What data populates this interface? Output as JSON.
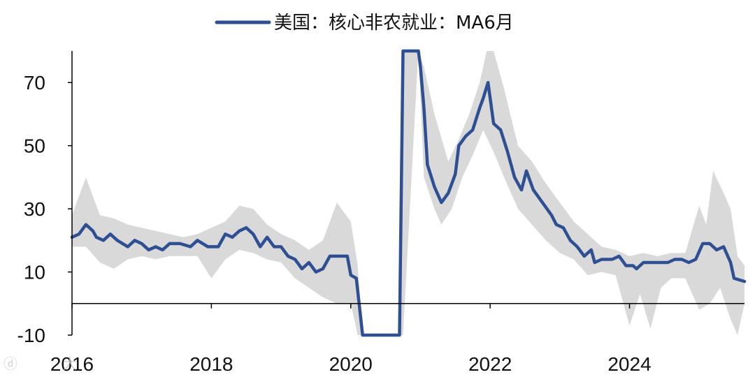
{
  "chart_data": {
    "type": "line",
    "title": "",
    "xlabel": "",
    "ylabel": "",
    "xlim": [
      2016.0,
      2025.65
    ],
    "ylim": [
      -10,
      80
    ],
    "x_ticks": [
      2016,
      2018,
      2020,
      2022,
      2024
    ],
    "x_tick_labels": [
      "2016",
      "2018",
      "2020",
      "2022",
      "2024"
    ],
    "y_ticks": [
      70,
      50,
      30,
      10,
      -10
    ],
    "y_tick_labels": [
      "70",
      "50",
      "30",
      "10",
      "-10"
    ],
    "grid": false,
    "legend_position": "top-center",
    "colors": {
      "line": "#2f4f93",
      "band": "#d9d9d9",
      "axis": "#000000"
    },
    "series": [
      {
        "name": "美国：核心非农就业：MA6月",
        "points": [
          [
            2016.0,
            21
          ],
          [
            2016.1,
            22
          ],
          [
            2016.2,
            25
          ],
          [
            2016.3,
            23
          ],
          [
            2016.35,
            21
          ],
          [
            2016.45,
            20
          ],
          [
            2016.55,
            22
          ],
          [
            2016.65,
            20
          ],
          [
            2016.8,
            18
          ],
          [
            2016.9,
            20
          ],
          [
            2017.0,
            19
          ],
          [
            2017.1,
            17
          ],
          [
            2017.2,
            18
          ],
          [
            2017.3,
            17
          ],
          [
            2017.4,
            19
          ],
          [
            2017.55,
            19
          ],
          [
            2017.7,
            18
          ],
          [
            2017.8,
            20
          ],
          [
            2017.95,
            18
          ],
          [
            2018.0,
            18
          ],
          [
            2018.1,
            18
          ],
          [
            2018.2,
            22
          ],
          [
            2018.3,
            21
          ],
          [
            2018.4,
            23
          ],
          [
            2018.5,
            24
          ],
          [
            2018.6,
            22
          ],
          [
            2018.7,
            18
          ],
          [
            2018.8,
            21
          ],
          [
            2018.9,
            18
          ],
          [
            2019.0,
            18
          ],
          [
            2019.1,
            15
          ],
          [
            2019.2,
            14
          ],
          [
            2019.3,
            11
          ],
          [
            2019.4,
            13
          ],
          [
            2019.5,
            10
          ],
          [
            2019.6,
            11
          ],
          [
            2019.7,
            15
          ],
          [
            2019.85,
            15
          ],
          [
            2019.95,
            15
          ],
          [
            2020.0,
            9
          ],
          [
            2020.08,
            8
          ],
          [
            2020.17,
            -10
          ],
          [
            2020.7,
            -10
          ],
          [
            2020.75,
            80
          ],
          [
            2020.97,
            80
          ],
          [
            2021.0,
            75
          ],
          [
            2021.05,
            62
          ],
          [
            2021.1,
            44
          ],
          [
            2021.2,
            37
          ],
          [
            2021.3,
            32
          ],
          [
            2021.4,
            35
          ],
          [
            2021.5,
            41
          ],
          [
            2021.55,
            50
          ],
          [
            2021.65,
            53
          ],
          [
            2021.75,
            55
          ],
          [
            2021.85,
            62
          ],
          [
            2021.9,
            65
          ],
          [
            2021.97,
            70
          ],
          [
            2022.05,
            57
          ],
          [
            2022.15,
            55
          ],
          [
            2022.25,
            48
          ],
          [
            2022.35,
            40
          ],
          [
            2022.45,
            36
          ],
          [
            2022.52,
            42
          ],
          [
            2022.62,
            36
          ],
          [
            2022.75,
            32
          ],
          [
            2022.88,
            28
          ],
          [
            2022.95,
            25
          ],
          [
            2023.05,
            24
          ],
          [
            2023.15,
            20
          ],
          [
            2023.25,
            18
          ],
          [
            2023.35,
            15
          ],
          [
            2023.45,
            17
          ],
          [
            2023.5,
            13
          ],
          [
            2023.6,
            14
          ],
          [
            2023.75,
            14
          ],
          [
            2023.85,
            15
          ],
          [
            2023.95,
            12
          ],
          [
            2024.05,
            12
          ],
          [
            2024.1,
            11
          ],
          [
            2024.2,
            13
          ],
          [
            2024.35,
            13
          ],
          [
            2024.45,
            13
          ],
          [
            2024.55,
            13
          ],
          [
            2024.65,
            14
          ],
          [
            2024.75,
            14
          ],
          [
            2024.85,
            13
          ],
          [
            2024.95,
            14
          ],
          [
            2025.05,
            19
          ],
          [
            2025.15,
            19
          ],
          [
            2025.25,
            17
          ],
          [
            2025.35,
            18
          ],
          [
            2025.45,
            13
          ],
          [
            2025.5,
            8
          ],
          [
            2025.65,
            7
          ]
        ],
        "band_upper": [
          [
            2016.0,
            28
          ],
          [
            2016.2,
            40
          ],
          [
            2016.4,
            28
          ],
          [
            2016.6,
            27
          ],
          [
            2016.8,
            25
          ],
          [
            2017.0,
            24
          ],
          [
            2017.2,
            23
          ],
          [
            2017.4,
            22
          ],
          [
            2017.6,
            21
          ],
          [
            2017.8,
            22
          ],
          [
            2018.0,
            24
          ],
          [
            2018.2,
            26
          ],
          [
            2018.4,
            31
          ],
          [
            2018.6,
            30
          ],
          [
            2018.8,
            25
          ],
          [
            2019.0,
            22
          ],
          [
            2019.2,
            20
          ],
          [
            2019.4,
            17
          ],
          [
            2019.6,
            20
          ],
          [
            2019.8,
            32
          ],
          [
            2020.0,
            26
          ],
          [
            2020.1,
            12
          ],
          [
            2020.17,
            -10
          ],
          [
            2020.7,
            -10
          ],
          [
            2020.75,
            80
          ],
          [
            2020.97,
            80
          ],
          [
            2021.05,
            75
          ],
          [
            2021.2,
            60
          ],
          [
            2021.4,
            45
          ],
          [
            2021.55,
            52
          ],
          [
            2021.7,
            60
          ],
          [
            2021.85,
            70
          ],
          [
            2021.95,
            80
          ],
          [
            2022.05,
            80
          ],
          [
            2022.2,
            68
          ],
          [
            2022.4,
            50
          ],
          [
            2022.6,
            45
          ],
          [
            2022.8,
            38
          ],
          [
            2023.0,
            32
          ],
          [
            2023.2,
            26
          ],
          [
            2023.4,
            22
          ],
          [
            2023.6,
            18
          ],
          [
            2023.8,
            17
          ],
          [
            2024.0,
            15
          ],
          [
            2024.2,
            16
          ],
          [
            2024.4,
            15
          ],
          [
            2024.6,
            16
          ],
          [
            2024.8,
            16
          ],
          [
            2025.0,
            31
          ],
          [
            2025.1,
            25
          ],
          [
            2025.2,
            42
          ],
          [
            2025.35,
            35
          ],
          [
            2025.45,
            30
          ],
          [
            2025.55,
            15
          ],
          [
            2025.65,
            12
          ]
        ],
        "band_lower": [
          [
            2016.0,
            18
          ],
          [
            2016.2,
            18
          ],
          [
            2016.4,
            13
          ],
          [
            2016.6,
            11
          ],
          [
            2016.8,
            14
          ],
          [
            2017.0,
            15
          ],
          [
            2017.2,
            14
          ],
          [
            2017.4,
            15
          ],
          [
            2017.6,
            15
          ],
          [
            2017.8,
            15
          ],
          [
            2018.0,
            8
          ],
          [
            2018.2,
            14
          ],
          [
            2018.4,
            17
          ],
          [
            2018.6,
            16
          ],
          [
            2018.8,
            14
          ],
          [
            2019.0,
            13
          ],
          [
            2019.2,
            8
          ],
          [
            2019.4,
            5
          ],
          [
            2019.6,
            2
          ],
          [
            2019.8,
            0
          ],
          [
            2020.0,
            0
          ],
          [
            2020.1,
            -10
          ],
          [
            2020.17,
            -10
          ],
          [
            2020.7,
            -10
          ],
          [
            2020.75,
            -10
          ],
          [
            2020.97,
            80
          ],
          [
            2021.05,
            40
          ],
          [
            2021.2,
            30
          ],
          [
            2021.3,
            25
          ],
          [
            2021.45,
            30
          ],
          [
            2021.6,
            40
          ],
          [
            2021.75,
            47
          ],
          [
            2021.9,
            55
          ],
          [
            2022.05,
            48
          ],
          [
            2022.2,
            40
          ],
          [
            2022.4,
            30
          ],
          [
            2022.6,
            25
          ],
          [
            2022.8,
            20
          ],
          [
            2023.0,
            16
          ],
          [
            2023.2,
            14
          ],
          [
            2023.4,
            9
          ],
          [
            2023.6,
            10
          ],
          [
            2023.8,
            9
          ],
          [
            2024.0,
            -7
          ],
          [
            2024.15,
            3
          ],
          [
            2024.3,
            -8
          ],
          [
            2024.45,
            5
          ],
          [
            2024.6,
            8
          ],
          [
            2024.8,
            8
          ],
          [
            2025.0,
            -2
          ],
          [
            2025.15,
            0
          ],
          [
            2025.3,
            5
          ],
          [
            2025.45,
            -5
          ],
          [
            2025.55,
            -10
          ],
          [
            2025.65,
            0
          ]
        ]
      }
    ]
  },
  "watermark": {
    "text": "大"
  }
}
